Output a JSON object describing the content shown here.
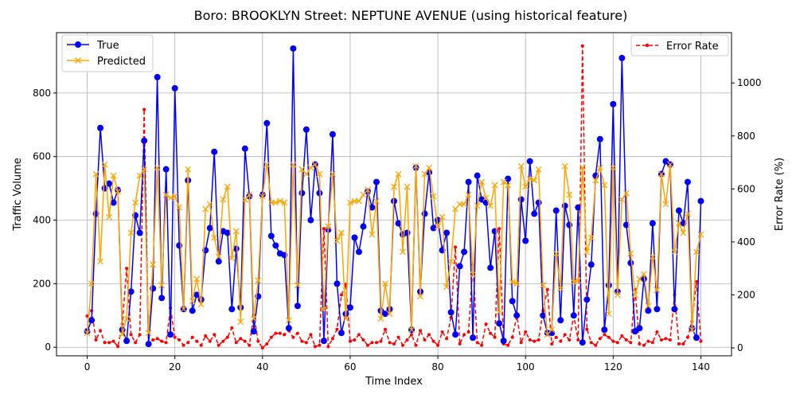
{
  "chart_data": {
    "type": "line",
    "title": "Boro: BROOKLYN Street: NEPTUNE AVENUE (using historical feature)",
    "xlabel": "Time Index",
    "ylabel": "Traffic Volume",
    "y2label": "Error Rate (%)",
    "xlim": [
      -7,
      147
    ],
    "ylim": [
      -27,
      990
    ],
    "y2lim": [
      -30,
      1190
    ],
    "xticks": [
      0,
      20,
      40,
      60,
      80,
      100,
      120,
      140
    ],
    "yticks": [
      0,
      200,
      400,
      600,
      800
    ],
    "y2ticks": [
      0,
      200,
      400,
      600,
      800,
      1000
    ],
    "grid": true,
    "legend_left": "upper-left",
    "legend_right": "upper-right",
    "series": [
      {
        "name": "True",
        "color": "#0000ff",
        "marker": "circle",
        "axis": "left",
        "values": [
          50,
          85,
          420,
          690,
          500,
          515,
          455,
          495,
          55,
          20,
          175,
          415,
          360,
          650,
          10,
          185,
          850,
          155,
          560,
          40,
          815,
          320,
          120,
          525,
          115,
          165,
          150,
          305,
          375,
          615,
          270,
          365,
          360,
          120,
          310,
          125,
          625,
          475,
          50,
          160,
          480,
          705,
          350,
          320,
          295,
          290,
          60,
          940,
          130,
          485,
          685,
          400,
          575,
          485,
          20,
          370,
          670,
          200,
          45,
          105,
          125,
          345,
          300,
          380,
          490,
          440,
          520,
          115,
          105,
          120,
          460,
          390,
          355,
          360,
          55,
          565,
          175,
          420,
          550,
          375,
          400,
          305,
          360,
          110,
          40,
          255,
          300,
          520,
          30,
          540,
          465,
          455,
          250,
          365,
          75,
          20,
          530,
          145,
          100,
          465,
          335,
          585,
          420,
          455,
          100,
          45,
          45,
          430,
          85,
          445,
          385,
          100,
          440,
          15,
          150,
          260,
          540,
          655,
          55,
          195,
          765,
          175,
          910,
          385,
          265,
          50,
          60,
          215,
          115,
          390,
          120,
          545,
          585,
          575,
          120,
          430,
          390,
          520,
          60,
          30,
          460
        ],
        "values_count_note": ""
      },
      {
        "name": "Predicted",
        "color": "#ffa500",
        "marker": "x",
        "axis": "left",
        "values": [
          45,
          200,
          545,
          270,
          575,
          410,
          540,
          490,
          40,
          90,
          360,
          455,
          540,
          560,
          45,
          260,
          565,
          195,
          480,
          470,
          475,
          440,
          120,
          560,
          145,
          215,
          135,
          435,
          450,
          345,
          285,
          465,
          505,
          280,
          365,
          80,
          465,
          480,
          90,
          210,
          475,
          575,
          455,
          455,
          460,
          455,
          85,
          575,
          195,
          560,
          545,
          565,
          575,
          545,
          120,
          380,
          545,
          335,
          360,
          90,
          455,
          460,
          460,
          480,
          495,
          355,
          460,
          90,
          200,
          105,
          505,
          545,
          300,
          505,
          55,
          570,
          160,
          545,
          565,
          475,
          380,
          410,
          190,
          270,
          435,
          450,
          450,
          480,
          230,
          445,
          520,
          470,
          445,
          510,
          110,
          520,
          510,
          205,
          200,
          570,
          505,
          530,
          525,
          560,
          195,
          40,
          55,
          295,
          185,
          570,
          480,
          205,
          210,
          565,
          300,
          345,
          525,
          565,
          510,
          105,
          565,
          165,
          465,
          485,
          295,
          165,
          215,
          230,
          130,
          285,
          180,
          545,
          450,
          575,
          300,
          390,
          360,
          420,
          55,
          300,
          355
        ],
        "values_count_note": ""
      },
      {
        "name": "Error Rate",
        "color": "#ff0000",
        "marker": "dot",
        "linestyle": "dashed",
        "axis": "right",
        "values": [
          120,
          140,
          30,
          65,
          20,
          20,
          25,
          5,
          90,
          300,
          50,
          20,
          50,
          900,
          20,
          30,
          35,
          25,
          20,
          150,
          40,
          30,
          10,
          20,
          40,
          25,
          10,
          45,
          25,
          50,
          10,
          25,
          40,
          75,
          20,
          35,
          25,
          10,
          125,
          25,
          0,
          15,
          40,
          55,
          55,
          50,
          65,
          40,
          55,
          25,
          20,
          50,
          5,
          10,
          450,
          5,
          35,
          70,
          200,
          240,
          25,
          30,
          50,
          30,
          10,
          20,
          20,
          25,
          70,
          20,
          15,
          40,
          10,
          30,
          50,
          10,
          65,
          30,
          50,
          25,
          10,
          60,
          35,
          115,
          380,
          15,
          50,
          60,
          315,
          20,
          10,
          90,
          55,
          40,
          450,
          15,
          10,
          40,
          120,
          20,
          60,
          30,
          25,
          30,
          140,
          220,
          15,
          40,
          25,
          50,
          30,
          120,
          30,
          1140,
          70,
          20,
          10,
          35,
          50,
          40,
          25,
          20,
          45,
          30,
          20,
          220,
          15,
          10,
          25,
          20,
          60,
          30,
          35,
          30,
          200,
          15,
          15,
          40,
          100,
          250,
          25
        ]
      }
    ]
  }
}
